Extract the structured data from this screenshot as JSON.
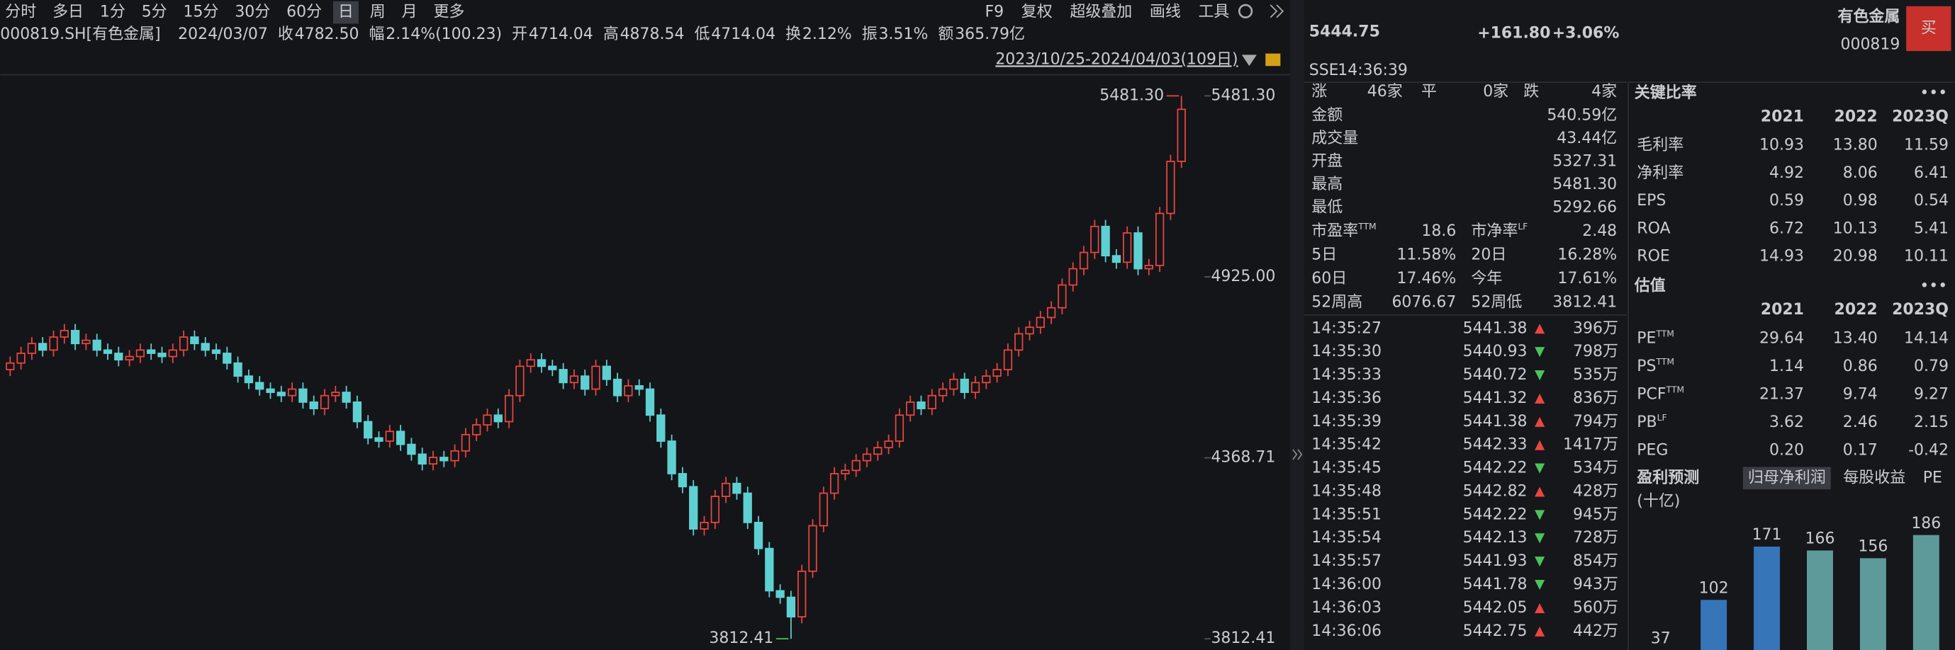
{
  "toolbar": {
    "periods": [
      "分时",
      "多日",
      "1分",
      "5分",
      "15分",
      "30分",
      "60分",
      "日",
      "周",
      "月",
      "更多"
    ],
    "active": 7,
    "tools": [
      "F9",
      "复权",
      "超级叠加",
      "画线",
      "工具"
    ]
  },
  "info_bar": {
    "symbol": "000819.SH[有色金属]",
    "date": "2024/03/07",
    "items": [
      {
        "label": "收",
        "value": "4782.50"
      },
      {
        "label": "幅",
        "value": "2.14%(100.23)"
      },
      {
        "label": "开",
        "value": "4714.04"
      },
      {
        "label": "高",
        "value": "4878.54"
      },
      {
        "label": "低",
        "value": "4714.04"
      },
      {
        "label": "换",
        "value": "2.12%"
      },
      {
        "label": "振",
        "value": "3.51%"
      },
      {
        "label": "额",
        "value": "365.79亿"
      }
    ]
  },
  "range_label": "2023/10/25-2024/04/03(109日)",
  "chart_data": [
    {
      "type": "candlestick",
      "open": [
        4640,
        4660,
        4690,
        4720,
        4700,
        4740,
        4760,
        4720,
        4730,
        4700,
        4690,
        4670,
        4680,
        4700,
        4690,
        4680,
        4700,
        4740,
        4720,
        4700,
        4690,
        4660,
        4620,
        4600,
        4580,
        4570,
        4560,
        4580,
        4540,
        4520,
        4560,
        4570,
        4540,
        4480,
        4430,
        4420,
        4450,
        4410,
        4380,
        4350,
        4370,
        4360,
        4390,
        4440,
        4470,
        4500,
        4480,
        4560,
        4650,
        4670,
        4650,
        4640,
        4600,
        4620,
        4580,
        4650,
        4610,
        4560,
        4590,
        4580,
        4500,
        4420,
        4320,
        4280,
        4150,
        4170,
        4250,
        4290,
        4260,
        4170,
        4090,
        3960,
        3940,
        3880,
        4020,
        4160,
        4260,
        4320,
        4330,
        4360,
        4380,
        4400,
        4420,
        4500,
        4540,
        4520,
        4560,
        4580,
        4610,
        4570,
        4600,
        4620,
        4640,
        4700,
        4750,
        4770,
        4800,
        4830,
        4900,
        4950,
        5000,
        5080,
        4990,
        4970,
        5060,
        4950,
        4960,
        5120,
        5280
      ],
      "high": [
        4680,
        4710,
        4740,
        4740,
        4760,
        4780,
        4780,
        4750,
        4750,
        4720,
        4710,
        4700,
        4720,
        4720,
        4710,
        4720,
        4760,
        4760,
        4740,
        4720,
        4710,
        4680,
        4640,
        4620,
        4600,
        4590,
        4600,
        4600,
        4560,
        4580,
        4590,
        4590,
        4560,
        4500,
        4450,
        4470,
        4470,
        4430,
        4400,
        4390,
        4390,
        4410,
        4460,
        4490,
        4520,
        4520,
        4580,
        4670,
        4690,
        4690,
        4670,
        4660,
        4640,
        4640,
        4670,
        4670,
        4630,
        4610,
        4610,
        4600,
        4520,
        4440,
        4340,
        4300,
        4190,
        4270,
        4310,
        4310,
        4280,
        4190,
        4110,
        3980,
        3960,
        4040,
        4180,
        4280,
        4340,
        4350,
        4380,
        4400,
        4420,
        4440,
        4520,
        4560,
        4560,
        4580,
        4600,
        4630,
        4630,
        4620,
        4640,
        4660,
        4720,
        4770,
        4790,
        4820,
        4850,
        4920,
        4970,
        5020,
        5100,
        5100,
        5010,
        5080,
        5080,
        4980,
        5140,
        5300,
        5481.3
      ],
      "low": [
        4620,
        4640,
        4670,
        4680,
        4680,
        4720,
        4700,
        4700,
        4680,
        4670,
        4650,
        4650,
        4660,
        4670,
        4660,
        4660,
        4680,
        4700,
        4680,
        4670,
        4640,
        4600,
        4580,
        4560,
        4550,
        4540,
        4540,
        4520,
        4500,
        4500,
        4540,
        4520,
        4460,
        4410,
        4400,
        4400,
        4390,
        4360,
        4330,
        4330,
        4340,
        4340,
        4370,
        4420,
        4450,
        4460,
        4460,
        4540,
        4630,
        4630,
        4620,
        4580,
        4580,
        4560,
        4560,
        4590,
        4540,
        4540,
        4560,
        4480,
        4400,
        4300,
        4260,
        4130,
        4130,
        4150,
        4230,
        4240,
        4150,
        4070,
        3940,
        3920,
        3812.41,
        3860,
        4000,
        4140,
        4240,
        4300,
        4310,
        4340,
        4360,
        4380,
        4400,
        4480,
        4500,
        4500,
        4540,
        4560,
        4550,
        4550,
        4580,
        4600,
        4620,
        4680,
        4730,
        4750,
        4780,
        4810,
        4880,
        4930,
        4980,
        4970,
        4950,
        4950,
        4930,
        4930,
        4940,
        5100,
        5260
      ],
      "close": [
        4660,
        4690,
        4720,
        4700,
        4740,
        4760,
        4720,
        4730,
        4700,
        4690,
        4670,
        4680,
        4700,
        4690,
        4680,
        4700,
        4740,
        4720,
        4700,
        4690,
        4660,
        4620,
        4600,
        4580,
        4570,
        4560,
        4580,
        4540,
        4520,
        4560,
        4570,
        4540,
        4480,
        4430,
        4420,
        4450,
        4410,
        4380,
        4350,
        4370,
        4360,
        4390,
        4440,
        4470,
        4500,
        4480,
        4560,
        4650,
        4670,
        4650,
        4640,
        4600,
        4620,
        4580,
        4650,
        4610,
        4560,
        4590,
        4580,
        4500,
        4420,
        4320,
        4280,
        4150,
        4170,
        4250,
        4290,
        4260,
        4170,
        4090,
        3960,
        3940,
        3880,
        4020,
        4160,
        4260,
        4320,
        4330,
        4360,
        4380,
        4400,
        4420,
        4500,
        4540,
        4520,
        4560,
        4580,
        4610,
        4570,
        4600,
        4620,
        4640,
        4700,
        4750,
        4770,
        4800,
        4830,
        4900,
        4950,
        5000,
        5080,
        4990,
        4970,
        5060,
        4950,
        4960,
        5120,
        5280,
        5440
      ],
      "ylim": [
        3812.41,
        5481.3
      ],
      "yticks": [
        {
          "value": 5481.3,
          "label": "5481.30"
        },
        {
          "value": 4925,
          "label": "4925.00"
        },
        {
          "value": 4368.71,
          "label": "4368.71"
        },
        {
          "value": 3812.41,
          "label": "3812.41"
        }
      ],
      "max_label": "5481.30",
      "min_label": "3812.41",
      "up_color": "#e9463f",
      "down_color": "#5fd0d2",
      "max_color": "#e9463f",
      "min_color": "#4cc35a"
    },
    {
      "type": "bar",
      "title": "盈利预测",
      "tabs": [
        "归母净利润",
        "每股收益",
        "PE"
      ],
      "active_tab": 0,
      "unit": "(十亿)",
      "values": [
        37,
        102,
        171,
        166,
        156,
        186
      ],
      "colors": [
        "#3575b8",
        "#3575b8",
        "#3575b8",
        "#5e9a9a",
        "#5e9a9a",
        "#5e9a9a"
      ]
    }
  ],
  "quote": {
    "price": "5444.75",
    "change": "+161.80",
    "percent": "+3.06%",
    "name": "有色金属",
    "code": "000819",
    "buy": "买",
    "exchange": "SSE",
    "time": "14:36:39"
  },
  "breadth": {
    "up_label": "涨",
    "up": "46家",
    "flat_label": "平",
    "flat": "0家",
    "down_label": "跌",
    "down": "4家"
  },
  "stats": [
    {
      "label": "金额",
      "value": "540.59亿",
      "color": "#e6e6e6"
    },
    {
      "label": "成交量",
      "value": "43.44亿",
      "color": "#e6e6e6"
    },
    {
      "label": "开盘",
      "value": "5327.31",
      "color": "#e9463f"
    },
    {
      "label": "最高",
      "value": "5481.30",
      "color": "#e9463f"
    },
    {
      "label": "最低",
      "value": "5292.66",
      "color": "#e9463f"
    }
  ],
  "pairs": [
    [
      {
        "label": "市盈率",
        "sup": "TTM",
        "value": "18.6",
        "color": "#e6e6e6"
      },
      {
        "label": "市净率",
        "sup": "LF",
        "value": "2.48",
        "color": "#e6e6e6"
      }
    ],
    [
      {
        "label": "5日",
        "value": "11.58%",
        "color": "#e9463f"
      },
      {
        "label": "20日",
        "value": "16.28%",
        "color": "#e9463f"
      }
    ],
    [
      {
        "label": "60日",
        "value": "17.46%",
        "color": "#e9463f"
      },
      {
        "label": "今年",
        "value": "17.61%",
        "color": "#e9463f"
      }
    ],
    [
      {
        "label": "52周高",
        "value": "6076.67",
        "color": "#e6e6e6"
      },
      {
        "label": "52周低",
        "value": "3812.41",
        "color": "#e6e6e6"
      }
    ]
  ],
  "ticks": [
    {
      "time": "14:35:27",
      "price": "5441.38",
      "dir": "up",
      "volume": "396万"
    },
    {
      "time": "14:35:30",
      "price": "5440.93",
      "dir": "down",
      "volume": "798万"
    },
    {
      "time": "14:35:33",
      "price": "5440.72",
      "dir": "down",
      "volume": "535万"
    },
    {
      "time": "14:35:36",
      "price": "5441.32",
      "dir": "up",
      "volume": "836万"
    },
    {
      "time": "14:35:39",
      "price": "5441.38",
      "dir": "up",
      "volume": "794万"
    },
    {
      "time": "14:35:42",
      "price": "5442.33",
      "dir": "up",
      "volume": "1417万"
    },
    {
      "time": "14:35:45",
      "price": "5442.22",
      "dir": "down",
      "volume": "534万"
    },
    {
      "time": "14:35:48",
      "price": "5442.82",
      "dir": "up",
      "volume": "428万"
    },
    {
      "time": "14:35:51",
      "price": "5442.22",
      "dir": "down",
      "volume": "945万"
    },
    {
      "time": "14:35:54",
      "price": "5442.13",
      "dir": "down",
      "volume": "728万"
    },
    {
      "time": "14:35:57",
      "price": "5441.93",
      "dir": "down",
      "volume": "854万"
    },
    {
      "time": "14:36:00",
      "price": "5441.78",
      "dir": "down",
      "volume": "943万"
    },
    {
      "time": "14:36:03",
      "price": "5442.05",
      "dir": "up",
      "volume": "560万"
    },
    {
      "time": "14:36:06",
      "price": "5442.75",
      "dir": "up",
      "volume": "442万"
    }
  ],
  "ratios": {
    "title": "关键比率",
    "columns": [
      "2021",
      "2022",
      "2023Q"
    ],
    "rows": [
      {
        "label": "毛利率",
        "values": [
          "10.93",
          "13.80",
          "11.59"
        ]
      },
      {
        "label": "净利率",
        "values": [
          "4.92",
          "8.06",
          "6.41"
        ]
      },
      {
        "label": "EPS",
        "values": [
          "0.59",
          "0.98",
          "0.54"
        ]
      },
      {
        "label": "ROA",
        "values": [
          "6.72",
          "10.13",
          "5.41"
        ]
      },
      {
        "label": "ROE",
        "values": [
          "14.93",
          "20.98",
          "10.11"
        ]
      }
    ]
  },
  "valuation": {
    "title": "估值",
    "columns": [
      "2021",
      "2022",
      "2023Q"
    ],
    "rows": [
      {
        "label": "PE",
        "sup": "TTM",
        "values": [
          "29.64",
          "13.40",
          "14.14"
        ]
      },
      {
        "label": "PS",
        "sup": "TTM",
        "values": [
          "1.14",
          "0.86",
          "0.79"
        ]
      },
      {
        "label": "PCF",
        "sup": "TTM",
        "values": [
          "21.37",
          "9.74",
          "9.27"
        ]
      },
      {
        "label": "PB",
        "sup": "LF",
        "values": [
          "3.62",
          "2.46",
          "2.15"
        ]
      },
      {
        "label": "PEG",
        "values": [
          "0.20",
          "0.17",
          "-0.42"
        ]
      }
    ]
  }
}
